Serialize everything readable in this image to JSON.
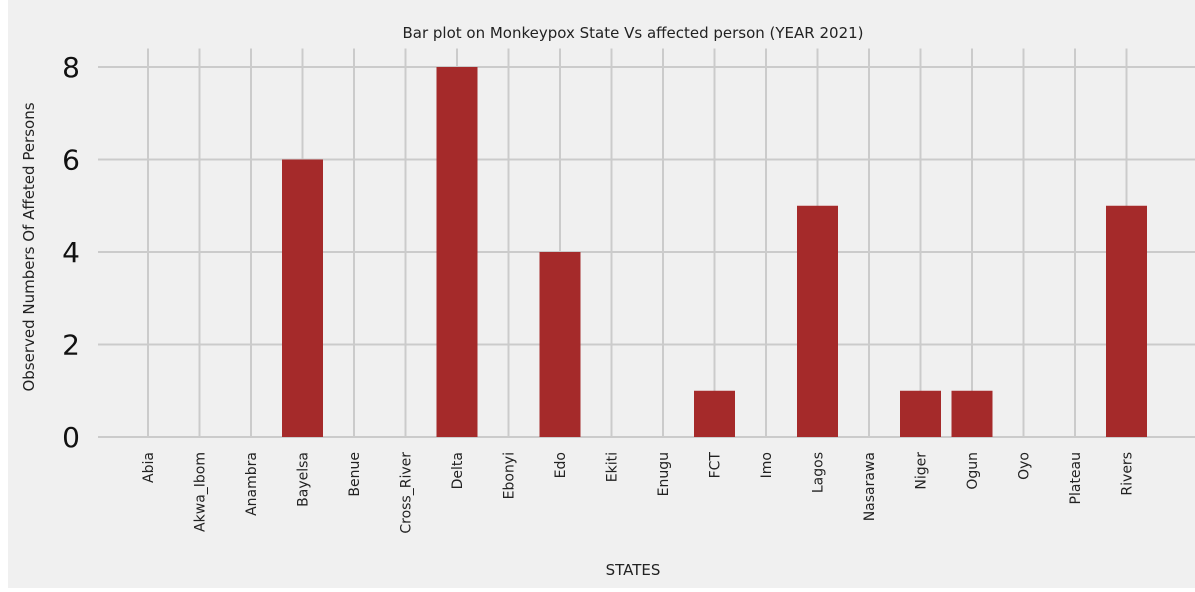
{
  "chart_data": {
    "type": "bar",
    "title": "Bar plot on Monkeypox State Vs affected person (YEAR 2021)",
    "xlabel": "STATES",
    "ylabel": "Observed Numbers Of Affeted Persons",
    "categories": [
      "Abia",
      "Akwa_Ibom",
      "Anambra",
      "Bayelsa",
      "Benue",
      "Cross_River",
      "Delta",
      "Ebonyi",
      "Edo",
      "Ekiti",
      "Enugu",
      "FCT",
      "Imo",
      "Lagos",
      "Nasarawa",
      "Niger",
      "Ogun",
      "Oyo",
      "Plateau",
      "Rivers"
    ],
    "values": [
      0,
      0,
      0,
      6,
      0,
      0,
      8,
      0,
      4,
      0,
      0,
      1,
      0,
      5,
      0,
      1,
      1,
      0,
      0,
      5
    ],
    "yticks": [
      0,
      2,
      4,
      6,
      8
    ],
    "ylim": [
      0,
      8.4
    ],
    "grid": true,
    "bar_color": "#a52a2a",
    "grid_color": "#cbcbcb",
    "background": "#f0f0f0"
  }
}
